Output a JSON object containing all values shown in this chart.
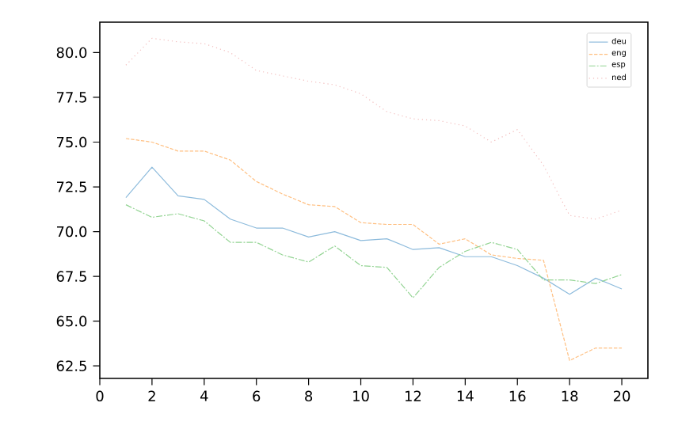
{
  "chart_data": {
    "type": "line",
    "x": [
      1,
      2,
      3,
      4,
      5,
      6,
      7,
      8,
      9,
      10,
      11,
      12,
      13,
      14,
      15,
      16,
      17,
      18,
      19,
      20
    ],
    "xlim": [
      0,
      21
    ],
    "ylim": [
      61.8,
      81.7
    ],
    "xticks": [
      0,
      2,
      4,
      6,
      8,
      10,
      12,
      14,
      16,
      18,
      20
    ],
    "yticks": [
      {
        "value": 62.5,
        "label": "62.5"
      },
      {
        "value": 65,
        "label": "65.0"
      },
      {
        "value": 67.5,
        "label": "67.5"
      },
      {
        "value": 70,
        "label": "70.0"
      },
      {
        "value": 72.5,
        "label": "72.5"
      },
      {
        "value": 75,
        "label": "75.0"
      },
      {
        "value": 77.5,
        "label": "77.5"
      },
      {
        "value": 80,
        "label": "80.0"
      }
    ],
    "legend": "top right",
    "grid": false,
    "series": [
      {
        "name": "deu",
        "color": "#8dbbdc",
        "line_style": "solid",
        "values": [
          71.9,
          73.6,
          72.0,
          71.8,
          70.7,
          70.2,
          70.2,
          69.7,
          70.0,
          69.5,
          69.6,
          69.0,
          69.1,
          68.6,
          68.6,
          68.1,
          67.4,
          66.5,
          67.4,
          66.8
        ]
      },
      {
        "name": "eng",
        "color": "#ffbf80",
        "line_style": "dashed",
        "values": [
          75.2,
          75.0,
          74.5,
          74.5,
          74.0,
          72.8,
          72.1,
          71.5,
          71.4,
          70.5,
          70.4,
          70.4,
          69.3,
          69.6,
          68.7,
          68.5,
          68.4,
          62.8,
          63.5,
          63.5
        ]
      },
      {
        "name": "esp",
        "color": "#93d493",
        "line_style": "dashdot",
        "values": [
          71.5,
          70.8,
          71.0,
          70.6,
          69.4,
          69.4,
          68.7,
          68.3,
          69.2,
          68.1,
          68.0,
          66.3,
          68.0,
          68.9,
          69.4,
          69.0,
          67.3,
          67.3,
          67.1,
          67.6
        ]
      },
      {
        "name": "ned",
        "color": "#f2bcbc",
        "line_style": "dotted",
        "values": [
          79.3,
          80.8,
          80.6,
          80.5,
          80.0,
          79.0,
          78.7,
          78.4,
          78.2,
          77.7,
          76.7,
          76.3,
          76.2,
          75.9,
          75.0,
          75.7,
          73.7,
          70.9,
          70.7,
          71.2
        ]
      }
    ]
  }
}
